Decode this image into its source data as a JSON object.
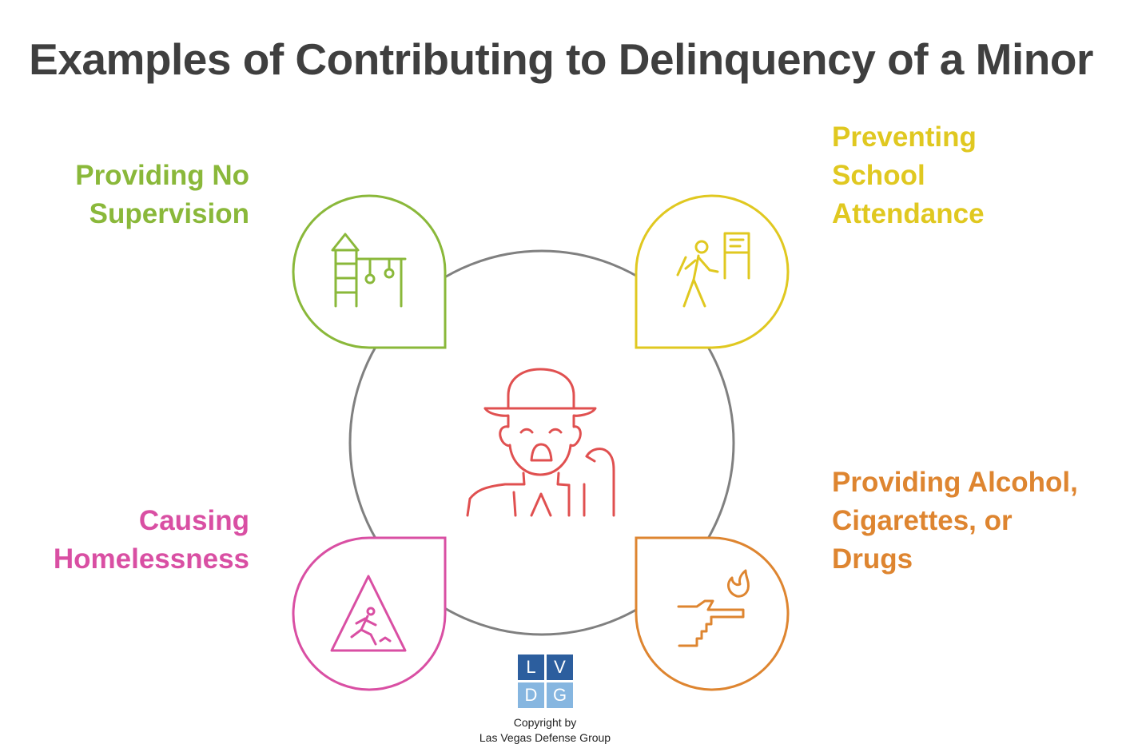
{
  "title": "Examples of Contributing to Delinquency of a Minor",
  "items": [
    {
      "id": "supervision",
      "lines": [
        "Providing No",
        "Supervision"
      ],
      "color": "#8ab83a",
      "icon": "playground-icon"
    },
    {
      "id": "school",
      "lines": [
        "Preventing",
        "School",
        "Attendance"
      ],
      "color": "#e0c820",
      "icon": "walking-to-school-icon"
    },
    {
      "id": "homelessness",
      "lines": [
        "Causing",
        "Homelessness"
      ],
      "color": "#d94fa3",
      "icon": "warning-sign-icon"
    },
    {
      "id": "substances",
      "lines": [
        "Providing Alcohol,",
        "Cigarettes, or",
        "Drugs"
      ],
      "color": "#de8530",
      "icon": "hand-lighter-icon"
    }
  ],
  "center": {
    "icon": "old-man-icon",
    "color": "#e05050"
  },
  "ring_color": "#808080",
  "logo": {
    "letters": [
      "L",
      "V",
      "D",
      "G"
    ],
    "dark": "#2c5e9e",
    "light": "#86b6e0"
  },
  "copyright": [
    "Copyright by",
    "Las Vegas Defense Group"
  ]
}
